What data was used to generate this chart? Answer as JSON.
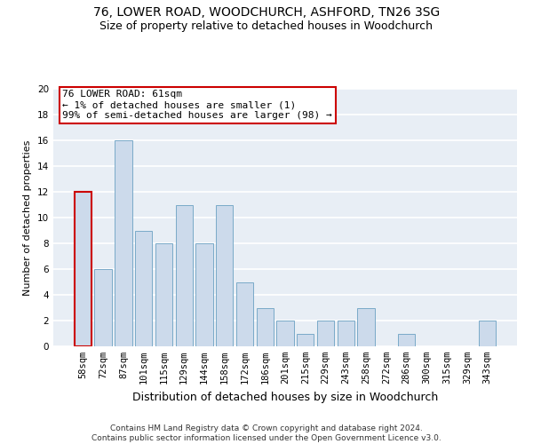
{
  "title": "76, LOWER ROAD, WOODCHURCH, ASHFORD, TN26 3SG",
  "subtitle": "Size of property relative to detached houses in Woodchurch",
  "xlabel": "Distribution of detached houses by size in Woodchurch",
  "ylabel": "Number of detached properties",
  "categories": [
    "58sqm",
    "72sqm",
    "87sqm",
    "101sqm",
    "115sqm",
    "129sqm",
    "144sqm",
    "158sqm",
    "172sqm",
    "186sqm",
    "201sqm",
    "215sqm",
    "229sqm",
    "243sqm",
    "258sqm",
    "272sqm",
    "286sqm",
    "300sqm",
    "315sqm",
    "329sqm",
    "343sqm"
  ],
  "values": [
    12,
    6,
    16,
    9,
    8,
    11,
    8,
    11,
    5,
    3,
    2,
    1,
    2,
    2,
    3,
    0,
    1,
    0,
    0,
    0,
    2
  ],
  "bar_color": "#ccdaeb",
  "bar_edge_color": "#7aaac8",
  "highlight_bar_index": 0,
  "highlight_edge_color": "#cc0000",
  "annotation_text": "76 LOWER ROAD: 61sqm\n← 1% of detached houses are smaller (1)\n99% of semi-detached houses are larger (98) →",
  "annotation_box_color": "#ffffff",
  "annotation_box_edge_color": "#cc0000",
  "ylim": [
    0,
    20
  ],
  "yticks": [
    0,
    2,
    4,
    6,
    8,
    10,
    12,
    14,
    16,
    18,
    20
  ],
  "background_color": "#e8eef5",
  "grid_color": "#ffffff",
  "footer": "Contains HM Land Registry data © Crown copyright and database right 2024.\nContains public sector information licensed under the Open Government Licence v3.0.",
  "title_fontsize": 10,
  "subtitle_fontsize": 9,
  "xlabel_fontsize": 9,
  "ylabel_fontsize": 8,
  "tick_fontsize": 7.5,
  "annotation_fontsize": 8,
  "footer_fontsize": 6.5
}
